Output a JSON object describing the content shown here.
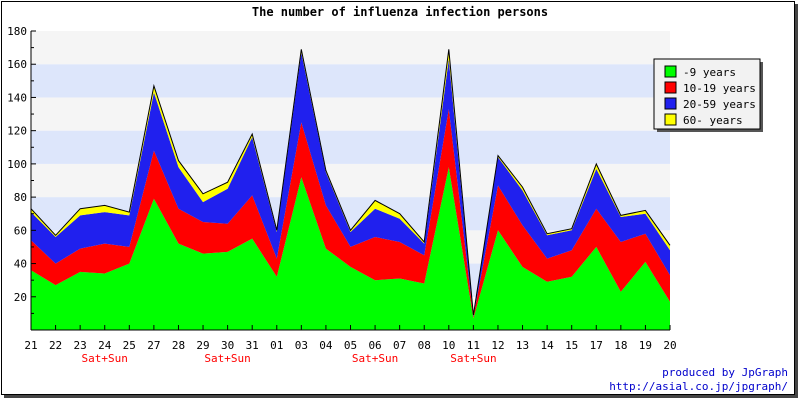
{
  "chart_data": {
    "type": "area",
    "stacked": true,
    "title": "The number of influenza infection persons",
    "xlabel": "",
    "ylabel": "",
    "ylim": [
      0,
      180
    ],
    "yticks": [
      20,
      40,
      60,
      80,
      100,
      120,
      140,
      160,
      180
    ],
    "grid": true,
    "legend_position": "right",
    "x": [
      "21",
      "22",
      "23",
      "24",
      "25",
      "27",
      "28",
      "29",
      "30",
      "31",
      "01",
      "03",
      "04",
      "05",
      "06",
      "07",
      "08",
      "10",
      "11",
      "12",
      "13",
      "14",
      "15",
      "17",
      "18",
      "19",
      "20"
    ],
    "annotations": [
      {
        "under_tick": "24",
        "text": "Sat+Sun"
      },
      {
        "under_tick": "30",
        "text": "Sat+Sun"
      },
      {
        "under_tick": "06",
        "text": "Sat+Sun"
      },
      {
        "under_tick": "11",
        "text": "Sat+Sun"
      }
    ],
    "series": [
      {
        "name": "-9 years",
        "color": "#00ff00",
        "values": [
          36,
          27,
          35,
          34,
          40,
          79,
          52,
          46,
          47,
          55,
          32,
          92,
          49,
          38,
          30,
          31,
          28,
          98,
          7,
          60,
          38,
          29,
          32,
          50,
          23,
          41,
          17
        ]
      },
      {
        "name": "10-19 years",
        "color": "#ff0000",
        "values": [
          18,
          13,
          14,
          18,
          10,
          29,
          21,
          19,
          17,
          26,
          11,
          33,
          26,
          12,
          26,
          22,
          17,
          35,
          1,
          27,
          25,
          14,
          16,
          23,
          30,
          17,
          16
        ]
      },
      {
        "name": "20-59 years",
        "color": "#2020ee",
        "values": [
          17,
          16,
          20,
          19,
          19,
          35,
          25,
          12,
          21,
          35,
          16,
          42,
          20,
          9,
          17,
          14,
          7,
          30,
          1,
          17,
          21,
          14,
          12,
          24,
          15,
          12,
          15
        ]
      },
      {
        "name": "60- years",
        "color": "#ffff00",
        "values": [
          2,
          1,
          4,
          4,
          2,
          4,
          4,
          5,
          4,
          2,
          1,
          2,
          1,
          1,
          5,
          3,
          1,
          6,
          0,
          1,
          2,
          1,
          1,
          3,
          1,
          2,
          3
        ]
      }
    ],
    "colors": {
      "band_light": "#f5f5f5",
      "band_blue": "#dde6fb",
      "grid_line": "#e0e0e0",
      "annotation": "#ff0000",
      "credit": "#0000cc"
    }
  },
  "credit": {
    "line1": "produced by JpGraph",
    "line2": "http://asial.co.jp/jpgraph/"
  }
}
